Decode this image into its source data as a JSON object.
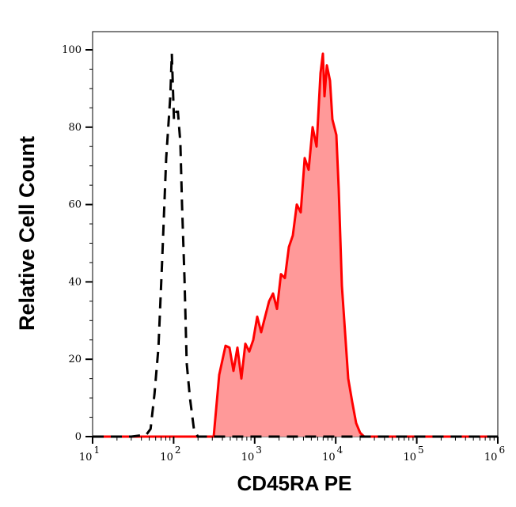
{
  "chart_data": {
    "type": "area",
    "title": "",
    "xlabel": "CD45RA PE",
    "ylabel": "Relative Cell Count",
    "xscale": "log",
    "xlim": [
      10,
      1000000
    ],
    "ylim": [
      0,
      100
    ],
    "x_tick_labels": [
      {
        "base": "10",
        "exp": "1"
      },
      {
        "base": "10",
        "exp": "2"
      },
      {
        "base": "10",
        "exp": "3"
      },
      {
        "base": "10",
        "exp": "4"
      },
      {
        "base": "10",
        "exp": "5"
      },
      {
        "base": "10",
        "exp": "6"
      }
    ],
    "y_tick_labels": [
      "0",
      "20",
      "40",
      "60",
      "80",
      "100"
    ],
    "grid": false,
    "series": [
      {
        "style": "dashed black line (unstained/isotype control)",
        "color": "#000000",
        "x": [
          10,
          30,
          46,
          52,
          58,
          65,
          72,
          81,
          91,
          95,
          101,
          108,
          113,
          121,
          127,
          136,
          145,
          159,
          178,
          199,
          1000000
        ],
        "y": [
          0,
          0,
          0.5,
          2,
          11,
          23,
          45,
          72,
          88,
          99,
          82,
          84,
          84,
          76,
          60,
          41,
          19,
          10,
          2,
          0,
          0
        ]
      },
      {
        "style": "red filled area",
        "color": "#ff0000",
        "fill": "#ff9999",
        "x": [
          10,
          312,
          365,
          437,
          489,
          547,
          612,
          685,
          767,
          859,
          960,
          1075,
          1203,
          1346,
          1507,
          1686,
          1884,
          2110,
          2361,
          2642,
          2957,
          3311,
          3701,
          4140,
          4634,
          5188,
          5807,
          6494,
          6950,
          7265,
          7776,
          8511,
          9103,
          10180,
          10900,
          11920,
          13040,
          14260,
          15960,
          17870,
          20000,
          22390,
          1000000
        ],
        "y": [
          0,
          0,
          16,
          23.5,
          23,
          17,
          23,
          15,
          24,
          22,
          25,
          31,
          27,
          31,
          35,
          37,
          33,
          42,
          41,
          49,
          52,
          60,
          58,
          72,
          69,
          80,
          75,
          94,
          99,
          88,
          96,
          92,
          82,
          78,
          64,
          39,
          27,
          15,
          9,
          3.5,
          1,
          0,
          0
        ]
      }
    ]
  }
}
